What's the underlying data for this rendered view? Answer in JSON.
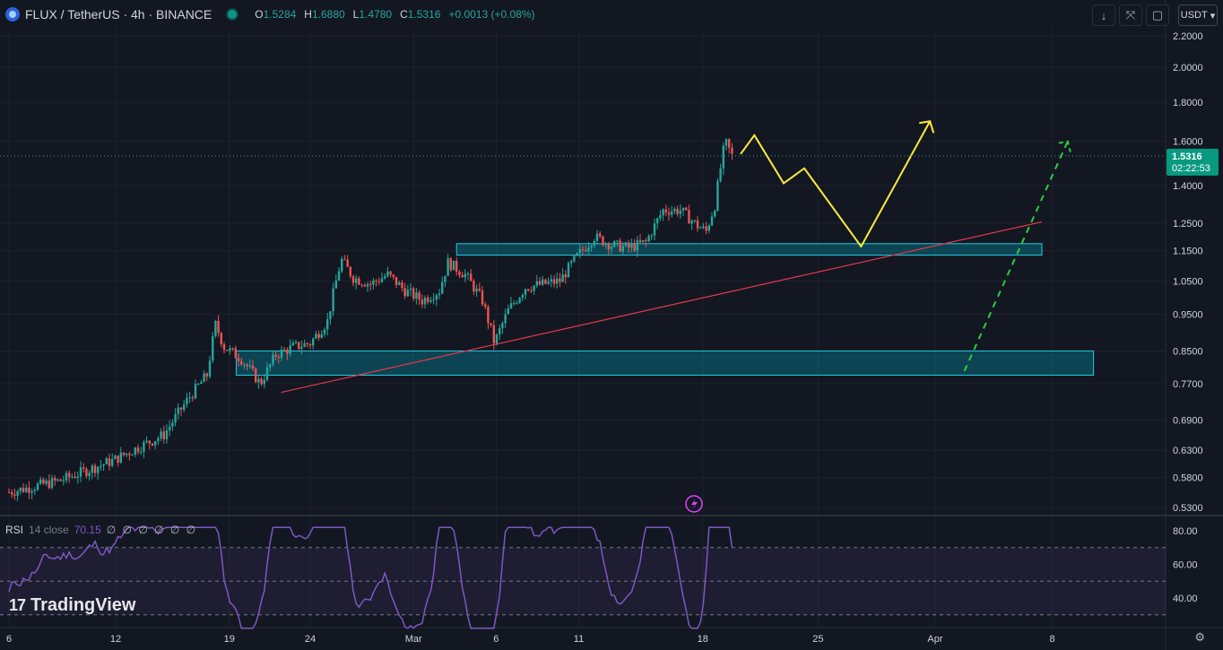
{
  "header": {
    "symbol_title": "FLUX / TetherUS · 4h · BINANCE",
    "ohlc": [
      {
        "k": "O",
        "v": "1.5284"
      },
      {
        "k": "H",
        "v": "1.6880"
      },
      {
        "k": "L",
        "v": "1.4780"
      },
      {
        "k": "C",
        "v": "1.5316"
      },
      {
        "k": "",
        "v": "+0.0013 (+0.08%)"
      }
    ],
    "currency": "USDT"
  },
  "toolbar": {
    "icons": [
      "arrow-down-icon",
      "fullscreen-icon",
      "camera-icon"
    ],
    "currency_chevron": "▾"
  },
  "chart_data": {
    "type": "candlestick",
    "symbol": "FLUX / TetherUS",
    "timeframe": "4h",
    "exchange": "BINANCE",
    "y_axis_labels": [
      "2.2000",
      "2.0000",
      "1.8000",
      "1.6000",
      "1.4000",
      "1.2500",
      "1.1500",
      "1.0500",
      "0.9500",
      "0.8500",
      "0.7700",
      "0.6900",
      "0.6300",
      "0.5800",
      "0.5300"
    ],
    "x_axis_labels": [
      "6",
      "12",
      "19",
      "24",
      "Mar",
      "6",
      "11",
      "18",
      "25",
      "Apr",
      "8"
    ],
    "last_price": "1.5316",
    "countdown": "02:22:53",
    "trend": [
      {
        "d": 0,
        "p": 0.555
      },
      {
        "d": 3,
        "p": 0.575
      },
      {
        "d": 6,
        "p": 0.61
      },
      {
        "d": 9,
        "p": 0.66
      },
      {
        "d": 10.5,
        "p": 0.74
      },
      {
        "d": 11.5,
        "p": 0.79
      },
      {
        "d": 12.0,
        "p": 0.92
      },
      {
        "d": 12.5,
        "p": 0.86
      },
      {
        "d": 13.5,
        "p": 0.83
      },
      {
        "d": 14.6,
        "p": 0.77
      },
      {
        "d": 15.5,
        "p": 0.84
      },
      {
        "d": 16.5,
        "p": 0.86
      },
      {
        "d": 17.5,
        "p": 0.87
      },
      {
        "d": 18.5,
        "p": 0.93
      },
      {
        "d": 19.3,
        "p": 1.12
      },
      {
        "d": 20,
        "p": 1.06
      },
      {
        "d": 21,
        "p": 1.04
      },
      {
        "d": 22,
        "p": 1.07
      },
      {
        "d": 23,
        "p": 1.02
      },
      {
        "d": 24,
        "p": 0.99
      },
      {
        "d": 25,
        "p": 1.02
      },
      {
        "d": 25.5,
        "p": 1.11
      },
      {
        "d": 26.5,
        "p": 1.07
      },
      {
        "d": 27.5,
        "p": 0.99
      },
      {
        "d": 28.2,
        "p": 0.87
      },
      {
        "d": 29,
        "p": 0.96
      },
      {
        "d": 30,
        "p": 1.03
      },
      {
        "d": 31,
        "p": 1.04
      },
      {
        "d": 32,
        "p": 1.05
      },
      {
        "d": 33,
        "p": 1.13
      },
      {
        "d": 34,
        "p": 1.2
      },
      {
        "d": 35,
        "p": 1.17
      },
      {
        "d": 36,
        "p": 1.16
      },
      {
        "d": 37,
        "p": 1.18
      },
      {
        "d": 38,
        "p": 1.3
      },
      {
        "d": 39,
        "p": 1.3
      },
      {
        "d": 40,
        "p": 1.24
      },
      {
        "d": 40.5,
        "p": 1.22
      },
      {
        "d": 41,
        "p": 1.32
      },
      {
        "d": 41.6,
        "p": 1.6
      },
      {
        "d": 42,
        "p": 1.5316
      }
    ],
    "zones": [
      {
        "name": "resistance-support-zone-upper",
        "d_start": 26.0,
        "d_end": 60.0,
        "p_low": 1.135,
        "p_high": 1.175
      },
      {
        "name": "demand-zone-lower",
        "d_start": 13.2,
        "d_end": 63.0,
        "p_low": 0.79,
        "p_high": 0.85
      }
    ],
    "trendline": {
      "d_start": 15.8,
      "p_start": 0.75,
      "d_end": 60.0,
      "p_end": 1.255
    },
    "projection_yellow": [
      {
        "d": 42.5,
        "p": 1.54
      },
      {
        "d": 43.3,
        "p": 1.63
      },
      {
        "d": 45.0,
        "p": 1.41
      },
      {
        "d": 46.2,
        "p": 1.475
      },
      {
        "d": 49.5,
        "p": 1.165
      },
      {
        "d": 53.5,
        "p": 1.7
      }
    ],
    "projection_green": [
      {
        "d": 55.5,
        "p": 0.8
      },
      {
        "d": 61.5,
        "p": 1.6
      }
    ],
    "rsi": {
      "name": "RSI",
      "params": "14 close",
      "value": "70.15",
      "nulls": "∅ ∅ ∅ ∅ ∅ ∅",
      "levels": [
        70,
        50,
        30
      ],
      "y_axis_labels": [
        "80.00",
        "60.00",
        "40.00"
      ]
    }
  },
  "branding": {
    "text": "TradingView",
    "mark": "17"
  }
}
